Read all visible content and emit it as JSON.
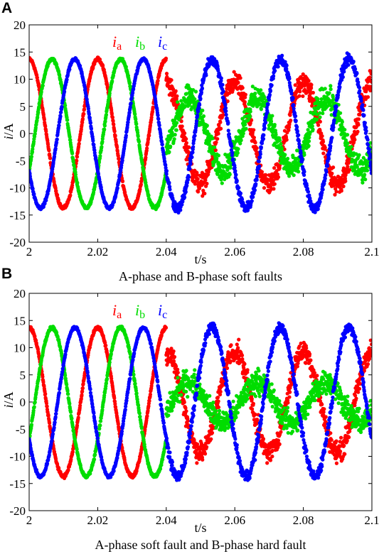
{
  "chart_data": [
    {
      "panel": "A",
      "type": "scatter",
      "caption": "A-phase and B-phase soft faults",
      "xlabel": "t/s",
      "ylabel_main": "i",
      "ylabel_unit": "/A",
      "xlim": [
        2.0,
        2.1
      ],
      "ylim": [
        -20,
        20
      ],
      "xticks": [
        "2",
        "2.02",
        "2.04",
        "2.06",
        "2.08",
        "2.1"
      ],
      "yticks": [
        "20",
        "15",
        "10",
        "5",
        "0",
        "-5",
        "-10",
        "-15",
        "-20"
      ],
      "fault_time": 2.04,
      "frequency_hz": 50,
      "series": [
        {
          "name": "i_a",
          "label": "i",
          "sub": "a",
          "color": "#ff0000",
          "phase_deg": 90,
          "amplitude_before": 13.7,
          "amplitude_after": 9.3,
          "offset_after": 0,
          "noise": 1.2,
          "stops_at": null
        },
        {
          "name": "i_b",
          "label": "i",
          "sub": "b",
          "color": "#00dd00",
          "phase_deg": -30,
          "amplitude_before": 13.7,
          "amplitude_after": 6.5,
          "offset_after": 0,
          "noise": 1.4,
          "stops_at": 2.04
        },
        {
          "name": "i_c",
          "label": "i",
          "sub": "c",
          "color": "#0000ff",
          "phase_deg": 210,
          "amplitude_before": 13.7,
          "amplitude_after": 13.7,
          "offset_after": 0,
          "noise": 0.6,
          "stops_at": null
        }
      ]
    },
    {
      "panel": "B",
      "type": "scatter",
      "caption": "A-phase soft fault and B-phase hard fault",
      "xlabel": "t/s",
      "ylabel_main": "i",
      "ylabel_unit": "/A",
      "xlim": [
        2.0,
        2.1
      ],
      "ylim": [
        -20,
        20
      ],
      "xticks": [
        "2",
        "2.02",
        "2.04",
        "2.06",
        "2.08",
        "2.1"
      ],
      "yticks": [
        "20",
        "15",
        "10",
        "5",
        "0",
        "-5",
        "-10",
        "-15",
        "-20"
      ],
      "fault_time": 2.04,
      "frequency_hz": 50,
      "series": [
        {
          "name": "i_a",
          "label": "i",
          "sub": "a",
          "color": "#ff0000",
          "phase_deg": 90,
          "amplitude_before": 13.7,
          "amplitude_after": 9.3,
          "offset_after": 0,
          "noise": 1.2,
          "stops_at": null
        },
        {
          "name": "i_b",
          "label": "i",
          "sub": "b",
          "color": "#00dd00",
          "phase_deg": -30,
          "amplitude_before": 13.7,
          "amplitude_after": 3.8,
          "offset_after": 0,
          "noise": 1.3,
          "stops_at": 2.04
        },
        {
          "name": "i_c",
          "label": "i",
          "sub": "c",
          "color": "#0000ff",
          "phase_deg": 210,
          "amplitude_before": 13.7,
          "amplitude_after": 13.7,
          "offset_after": 0,
          "noise": 0.6,
          "stops_at": null
        }
      ]
    }
  ]
}
